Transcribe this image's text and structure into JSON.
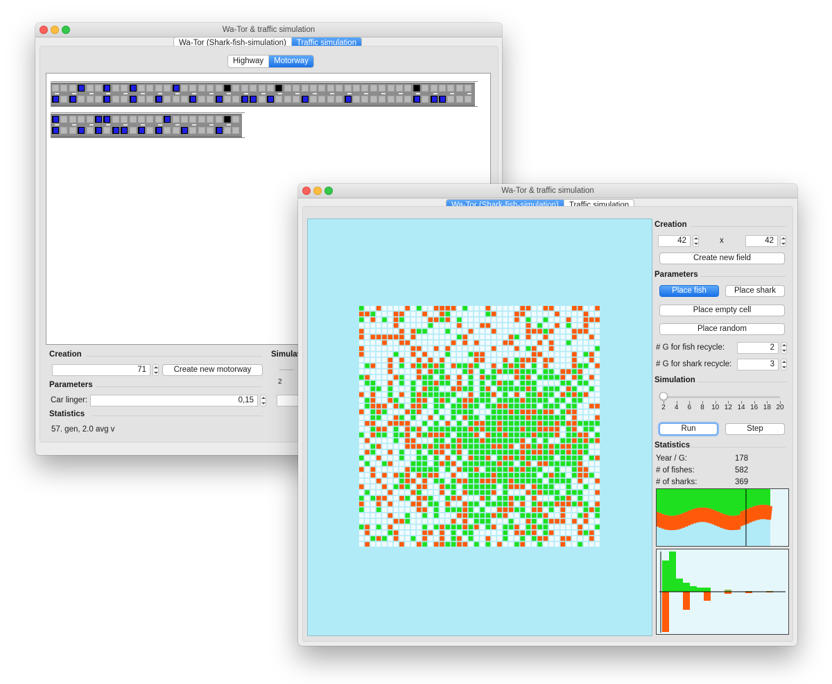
{
  "window_title": "Wa-Tor & traffic simulation",
  "tabs": [
    "Wa-Tor (Shark-fish-simulation)",
    "Traffic simulation"
  ],
  "traffic_window": {
    "subtabs": [
      "Highway",
      "Motorway"
    ],
    "creation": {
      "section": "Creation",
      "length_value": "71",
      "create_label": "Create new motorway"
    },
    "simulation_section": "Simulat",
    "slider_min": "2",
    "parameters": {
      "section": "Parameters",
      "car_linger_label": "Car linger:",
      "car_linger_value": "0,15"
    },
    "statistics": {
      "section": "Statistics",
      "text": "57. gen, 2.0 avg v"
    },
    "road1_top_cars": [
      3,
      6,
      9,
      14,
      20,
      26,
      42
    ],
    "road1_top_black": [
      20,
      26,
      42
    ],
    "road1_bottom_cars": [
      0,
      2,
      6,
      9,
      12,
      16,
      19,
      22,
      23,
      25,
      29,
      34,
      42,
      44,
      45
    ],
    "road2_top_cars": [
      0,
      5,
      6,
      13
    ],
    "road2_top_black": [
      20
    ],
    "road2_bottom_cars": [
      0,
      3,
      5,
      7,
      8,
      10,
      12,
      15,
      19
    ]
  },
  "wator_window": {
    "grid_size": 42,
    "colors": {
      "water": "#b2ebf8",
      "fish": "#1ee01e",
      "shark": "#ff5a0a",
      "empty": "#f2fbfd"
    },
    "creation": {
      "section": "Creation",
      "width_value": "42",
      "times": "x",
      "height_value": "42",
      "create_label": "Create new field"
    },
    "parameters": {
      "section": "Parameters",
      "place_fish": "Place fish",
      "place_shark": "Place shark",
      "place_empty": "Place empty cell",
      "place_random": "Place random",
      "fish_recycle_label": "# G for fish recycle:",
      "fish_recycle_value": "2",
      "shark_recycle_label": "# G for shark recycle:",
      "shark_recycle_value": "3"
    },
    "simulation": {
      "section": "Simulation",
      "ticks": [
        "2",
        "4",
        "6",
        "8",
        "10",
        "12",
        "14",
        "16",
        "18",
        "20"
      ],
      "speed": 2,
      "run_label": "Run",
      "step_label": "Step"
    },
    "statistics": {
      "section": "Statistics",
      "year_label": "Year / G:",
      "year_value": "178",
      "fishes_label": "# of fishes:",
      "fishes_value": "582",
      "sharks_label": "# of sharks:",
      "sharks_value": "369"
    }
  }
}
